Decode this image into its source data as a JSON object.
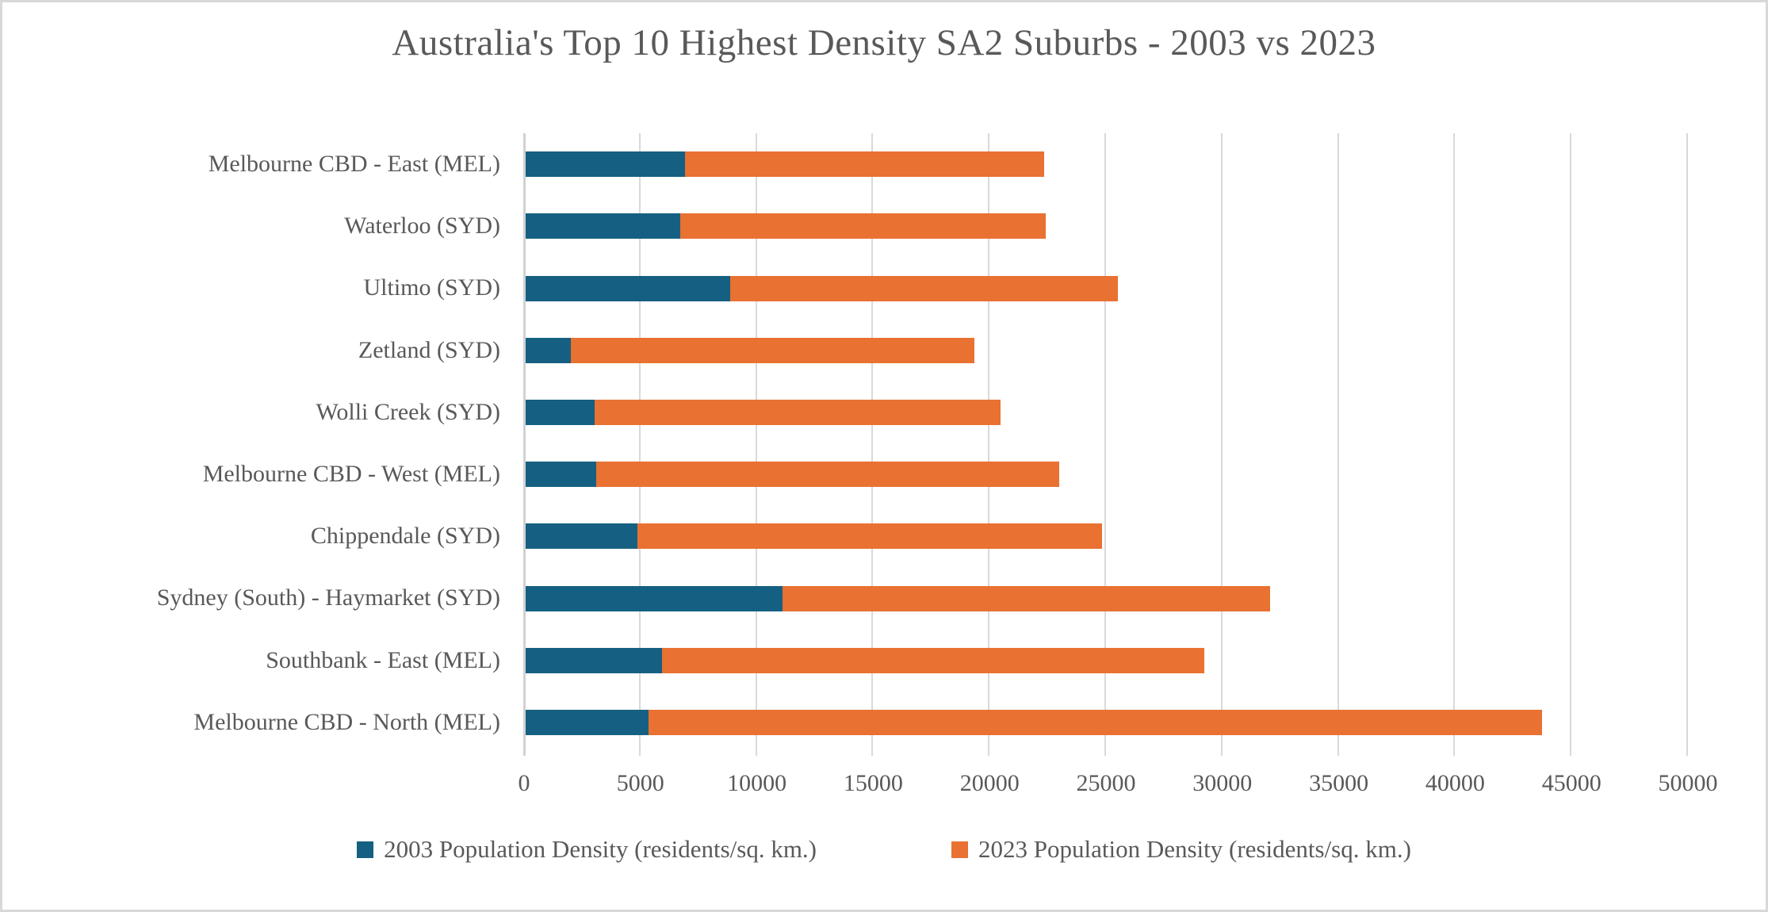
{
  "chart_data": {
    "type": "bar",
    "orientation": "horizontal",
    "stacked": true,
    "title": "Australia's Top 10 Highest Density SA2 Suburbs - 2003 vs 2023",
    "categories": [
      "Melbourne CBD - East (MEL)",
      "Waterloo (SYD)",
      "Ultimo (SYD)",
      "Zetland (SYD)",
      "Wolli Creek (SYD)",
      "Melbourne CBD - West (MEL)",
      "Chippendale (SYD)",
      "Sydney (South) - Haymarket (SYD)",
      "Southbank - East (MEL)",
      "Melbourne CBD - North (MEL)"
    ],
    "series": [
      {
        "name": "2003 Population Density (residents/sq. km.)",
        "color": "#156082",
        "values": [
          6850,
          6640,
          8790,
          1940,
          2960,
          3020,
          4790,
          11050,
          5860,
          5290
        ]
      },
      {
        "name": "2023 Population Density (residents/sq. km.)",
        "color": "#E97132",
        "values": [
          15430,
          15700,
          16660,
          17340,
          17440,
          19890,
          19960,
          20920,
          23290,
          38380
        ]
      }
    ],
    "stacked_totals": [
      22280,
      22340,
      25450,
      19280,
      20400,
      22910,
      24750,
      31970,
      29150,
      43670
    ],
    "xlabel": "",
    "ylabel": "",
    "xlim": [
      0,
      50000
    ],
    "x_ticks": [
      0,
      5000,
      10000,
      15000,
      20000,
      25000,
      30000,
      35000,
      40000,
      45000,
      50000
    ],
    "grid": true,
    "legend_position": "bottom"
  },
  "colors": {
    "background": "#FFFFFF",
    "border": "#D8D8D8",
    "gridline": "#D9D9D9",
    "axis_line": "#D2D2D2",
    "text": "#595959",
    "series_2003": "#156082",
    "series_2023": "#E97132"
  }
}
